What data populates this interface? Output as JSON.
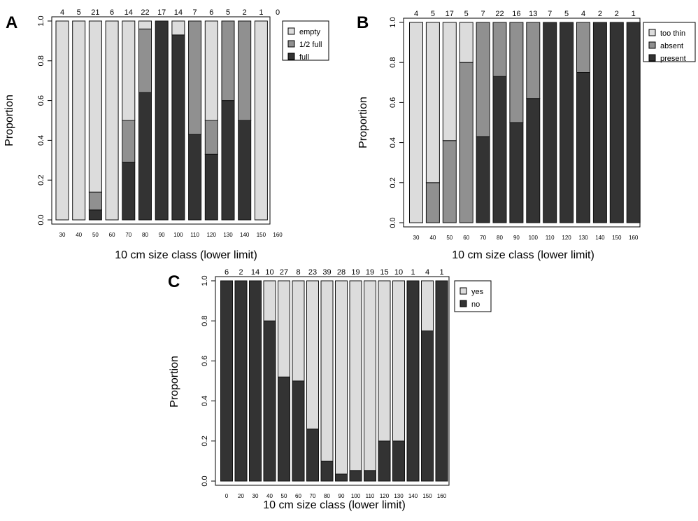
{
  "chart_data": [
    {
      "panel_label": "A",
      "type": "bar",
      "stacked": true,
      "normalized": true,
      "xlabel": "10 cm size class (lower limit)",
      "ylabel": "Proportion",
      "ylim": [
        0,
        1
      ],
      "yticks": [
        "0.0",
        "0.2",
        "0.4",
        "0.6",
        "0.8",
        "1.0"
      ],
      "categories": [
        "30",
        "40",
        "50",
        "60",
        "70",
        "80",
        "90",
        "100",
        "110",
        "120",
        "130",
        "140",
        "150",
        "160"
      ],
      "counts": [
        "4",
        "5",
        "21",
        "6",
        "14",
        "22",
        "17",
        "14",
        "7",
        "6",
        "5",
        "2",
        "1",
        "0"
      ],
      "legend_position": "top-right",
      "series": [
        {
          "name": "full",
          "color": "#333333",
          "values": [
            0,
            0,
            0.05,
            0,
            0.29,
            0.64,
            1.0,
            0.93,
            0.43,
            0.33,
            0.6,
            0.5,
            0,
            0
          ]
        },
        {
          "name": "1/2 full",
          "color": "#909090",
          "values": [
            0,
            0,
            0.09,
            0,
            0.21,
            0.32,
            0,
            0,
            0.57,
            0.17,
            0.4,
            0.5,
            0,
            0
          ]
        },
        {
          "name": "empty",
          "color": "#dcdcdc",
          "values": [
            1.0,
            1.0,
            0.86,
            1.0,
            0.5,
            0.04,
            0,
            0.07,
            0,
            0.5,
            0,
            0,
            1.0,
            0
          ]
        }
      ]
    },
    {
      "panel_label": "B",
      "type": "bar",
      "stacked": true,
      "normalized": true,
      "xlabel": "10 cm size class (lower limit)",
      "ylabel": "Proportion",
      "ylim": [
        0,
        1
      ],
      "yticks": [
        "0.0",
        "0.2",
        "0.4",
        "0.6",
        "0.8",
        "1.0"
      ],
      "categories": [
        "30",
        "40",
        "50",
        "60",
        "70",
        "80",
        "90",
        "100",
        "110",
        "120",
        "130",
        "140",
        "150",
        "160"
      ],
      "counts": [
        "4",
        "5",
        "17",
        "5",
        "7",
        "22",
        "16",
        "13",
        "7",
        "5",
        "4",
        "2",
        "2",
        "1"
      ],
      "legend_position": "top-right",
      "series": [
        {
          "name": "present",
          "color": "#333333",
          "values": [
            0,
            0,
            0,
            0,
            0.43,
            0.73,
            0.5,
            0.62,
            1.0,
            1.0,
            0.75,
            1.0,
            1.0,
            1.0
          ]
        },
        {
          "name": "absent",
          "color": "#909090",
          "values": [
            0,
            0.2,
            0.41,
            0.8,
            0.57,
            0.27,
            0.5,
            0.38,
            0,
            0,
            0.25,
            0,
            0,
            0
          ]
        },
        {
          "name": "too thin",
          "color": "#dcdcdc",
          "values": [
            1.0,
            0.8,
            0.59,
            0.2,
            0,
            0,
            0,
            0,
            0,
            0,
            0,
            0,
            0,
            0
          ]
        }
      ]
    },
    {
      "panel_label": "C",
      "type": "bar",
      "stacked": true,
      "normalized": true,
      "xlabel": "10 cm size class (lower limit)",
      "ylabel": "Proportion",
      "ylim": [
        0,
        1
      ],
      "yticks": [
        "0.0",
        "0.2",
        "0.4",
        "0.6",
        "0.8",
        "1.0"
      ],
      "categories": [
        "0",
        "20",
        "30",
        "40",
        "50",
        "60",
        "70",
        "80",
        "90",
        "100",
        "110",
        "120",
        "130",
        "140",
        "150",
        "160"
      ],
      "counts": [
        "6",
        "2",
        "14",
        "10",
        "27",
        "8",
        "23",
        "39",
        "28",
        "19",
        "19",
        "15",
        "10",
        "1",
        "4",
        "1"
      ],
      "legend_position": "top-right",
      "series": [
        {
          "name": "no",
          "color": "#333333",
          "values": [
            1.0,
            1.0,
            1.0,
            0.8,
            0.52,
            0.5,
            0.26,
            0.1,
            0.035,
            0.053,
            0.053,
            0.2,
            0.2,
            1.0,
            0.75,
            1.0
          ]
        },
        {
          "name": "yes",
          "color": "#dcdcdc",
          "values": [
            0,
            0,
            0,
            0.2,
            0.48,
            0.5,
            0.74,
            0.9,
            0.965,
            0.947,
            0.947,
            0.8,
            0.8,
            0,
            0.25,
            0
          ]
        }
      ]
    }
  ]
}
